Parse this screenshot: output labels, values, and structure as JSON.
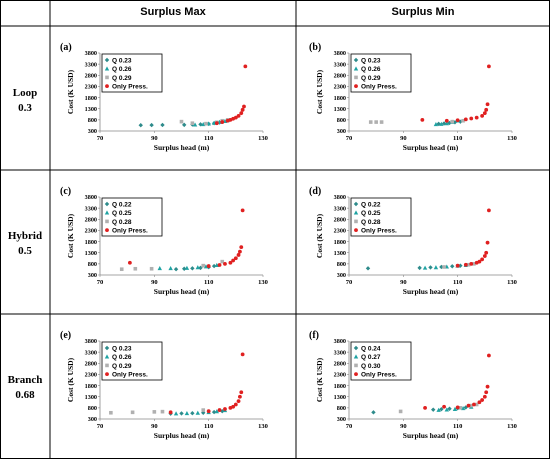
{
  "header": {
    "col1": "Surplus Max",
    "col2": "Surplus Min"
  },
  "rows": [
    {
      "name": "Loop",
      "value": "0.3"
    },
    {
      "name": "Hybrid",
      "value": "0.5"
    },
    {
      "name": "Branch",
      "value": "0.68"
    }
  ],
  "colors": {
    "series1": "#2E8B8B",
    "series2": "#1FA3A3",
    "series3": "#B0B0B0",
    "only_press": "#E02020"
  },
  "chart_data": [
    {
      "panel": "(a)",
      "type": "scatter",
      "xlabel": "Surplus head (m)",
      "ylabel": "Cost (K USD)",
      "xlim": [
        70,
        130
      ],
      "ylim": [
        300,
        3800
      ],
      "xticks": [
        70,
        90,
        110,
        130
      ],
      "yticks": [
        300,
        800,
        1300,
        1800,
        2300,
        2800,
        3300,
        3800
      ],
      "series": [
        {
          "name": "Q 0.23",
          "points": [
            [
              85,
              560
            ],
            [
              89,
              565
            ],
            [
              93,
              570
            ],
            [
              101,
              575
            ],
            [
              104,
              590
            ],
            [
              107,
              600
            ],
            [
              110,
              620
            ],
            [
              112,
              650
            ],
            [
              114,
              680
            ]
          ]
        },
        {
          "name": "Q 0.26",
          "points": [
            [
              105,
              580
            ],
            [
              108,
              600
            ],
            [
              110,
              625
            ],
            [
              112,
              660
            ],
            [
              114,
              700
            ],
            [
              116,
              740
            ],
            [
              117,
              780
            ]
          ]
        },
        {
          "name": "Q 0.29",
          "points": [
            [
              100,
              720
            ],
            [
              104,
              650
            ],
            [
              109,
              630
            ],
            [
              113,
              690
            ],
            [
              115,
              760
            ],
            [
              117,
              800
            ]
          ]
        },
        {
          "name": "Only Press.",
          "points": [
            [
              113,
              650
            ],
            [
              115,
              700
            ],
            [
              117,
              760
            ],
            [
              118,
              800
            ],
            [
              119,
              850
            ],
            [
              120,
              900
            ],
            [
              121,
              980
            ],
            [
              122,
              1100
            ],
            [
              122.5,
              1250
            ],
            [
              123,
              1400
            ],
            [
              123.5,
              3200
            ]
          ]
        }
      ]
    },
    {
      "panel": "(b)",
      "type": "scatter",
      "xlabel": "Surplus head (m)",
      "ylabel": "Cost (K USD)",
      "xlim": [
        70,
        130
      ],
      "ylim": [
        300,
        3800
      ],
      "xticks": [
        70,
        90,
        110,
        130
      ],
      "yticks": [
        300,
        800,
        1300,
        1800,
        2300,
        2800,
        3300,
        3800
      ],
      "series": [
        {
          "name": "Q 0.23",
          "points": [
            [
              103,
              620
            ],
            [
              105,
              640
            ],
            [
              107,
              660
            ],
            [
              109,
              690
            ],
            [
              111,
              720
            ]
          ]
        },
        {
          "name": "Q 0.26",
          "points": [
            [
              102,
              600
            ],
            [
              104,
              610
            ],
            [
              106,
              640
            ],
            [
              108,
              700
            ],
            [
              110,
              760
            ]
          ]
        },
        {
          "name": "Q 0.29",
          "points": [
            [
              78,
              700
            ],
            [
              80,
              700
            ],
            [
              82,
              700
            ],
            [
              108,
              720
            ],
            [
              112,
              760
            ]
          ]
        },
        {
          "name": "Only Press.",
          "points": [
            [
              97,
              800
            ],
            [
              106,
              760
            ],
            [
              110,
              780
            ],
            [
              113,
              820
            ],
            [
              115,
              860
            ],
            [
              117,
              900
            ],
            [
              119,
              980
            ],
            [
              120,
              1100
            ],
            [
              120.5,
              1250
            ],
            [
              121,
              1500
            ],
            [
              121.5,
              3200
            ]
          ]
        }
      ]
    },
    {
      "panel": "(c)",
      "type": "scatter",
      "xlabel": "Surplus head (m)",
      "ylabel": "Cost (K USD)",
      "xlim": [
        70,
        130
      ],
      "ylim": [
        300,
        3800
      ],
      "xticks": [
        70,
        90,
        110,
        130
      ],
      "yticks": [
        300,
        800,
        1300,
        1800,
        2300,
        2800,
        3300,
        3800
      ],
      "series": [
        {
          "name": "Q 0.22",
          "points": [
            [
              98,
              560
            ],
            [
              101,
              580
            ],
            [
              104,
              600
            ],
            [
              107,
              620
            ],
            [
              110,
              650
            ],
            [
              112,
              700
            ]
          ]
        },
        {
          "name": "Q 0.25",
          "points": [
            [
              92,
              600
            ],
            [
              96,
              600
            ],
            [
              102,
              610
            ],
            [
              106,
              640
            ],
            [
              109,
              680
            ],
            [
              113,
              740
            ]
          ]
        },
        {
          "name": "Q 0.28",
          "points": [
            [
              78,
              560
            ],
            [
              83,
              580
            ],
            [
              89,
              580
            ],
            [
              108,
              720
            ],
            [
              115,
              900
            ]
          ]
        },
        {
          "name": "Only Press.",
          "points": [
            [
              81,
              850
            ],
            [
              110,
              700
            ],
            [
              114,
              750
            ],
            [
              116,
              800
            ],
            [
              118,
              850
            ],
            [
              119,
              950
            ],
            [
              120,
              1050
            ],
            [
              121,
              1200
            ],
            [
              121.5,
              1350
            ],
            [
              122,
              1550
            ],
            [
              122.5,
              3200
            ]
          ]
        }
      ]
    },
    {
      "panel": "(d)",
      "type": "scatter",
      "xlabel": "Surplus head (m)",
      "ylabel": "Cost (K USD)",
      "xlim": [
        70,
        130
      ],
      "ylim": [
        300,
        3800
      ],
      "xticks": [
        70,
        90,
        110,
        130
      ],
      "yticks": [
        300,
        800,
        1300,
        1800,
        2300,
        2800,
        3300,
        3800
      ],
      "series": [
        {
          "name": "Q 0.22",
          "points": [
            [
              77,
              600
            ],
            [
              96,
              620
            ],
            [
              100,
              640
            ],
            [
              104,
              660
            ],
            [
              108,
              690
            ],
            [
              111,
              720
            ]
          ]
        },
        {
          "name": "Q 0.25",
          "points": [
            [
              98,
              620
            ],
            [
              102,
              640
            ],
            [
              106,
              670
            ],
            [
              110,
              700
            ],
            [
              113,
              740
            ]
          ]
        },
        {
          "name": "Q 0.28",
          "points": [
            [
              105,
              660
            ],
            [
              110,
              700
            ],
            [
              114,
              760
            ],
            [
              116,
              800
            ]
          ]
        },
        {
          "name": "Only Press.",
          "points": [
            [
              110,
              720
            ],
            [
              113,
              760
            ],
            [
              115,
              800
            ],
            [
              117,
              850
            ],
            [
              118,
              900
            ],
            [
              119,
              1000
            ],
            [
              120,
              1150
            ],
            [
              120.5,
              1300
            ],
            [
              121,
              1750
            ],
            [
              121.5,
              3200
            ]
          ]
        }
      ]
    },
    {
      "panel": "(e)",
      "type": "scatter",
      "xlabel": "Surplus head (m)",
      "ylabel": "Cost (K USD)",
      "xlim": [
        70,
        130
      ],
      "ylim": [
        300,
        3800
      ],
      "xticks": [
        70,
        90,
        110,
        130
      ],
      "yticks": [
        300,
        800,
        1300,
        1800,
        2300,
        2800,
        3300,
        3800
      ],
      "series": [
        {
          "name": "Q 0.23",
          "points": [
            [
              96,
              540
            ],
            [
              100,
              550
            ],
            [
              104,
              560
            ],
            [
              108,
              580
            ],
            [
              112,
              610
            ],
            [
              115,
              650
            ]
          ]
        },
        {
          "name": "Q 0.26",
          "points": [
            [
              98,
              545
            ],
            [
              102,
              555
            ],
            [
              106,
              570
            ],
            [
              110,
              600
            ],
            [
              113,
              640
            ],
            [
              116,
              690
            ]
          ]
        },
        {
          "name": "Q 0.29",
          "points": [
            [
              74,
              580
            ],
            [
              82,
              600
            ],
            [
              90,
              620
            ],
            [
              93,
              630
            ],
            [
              108,
              700
            ]
          ]
        },
        {
          "name": "Only Press.",
          "points": [
            [
              96,
              600
            ],
            [
              110,
              650
            ],
            [
              114,
              700
            ],
            [
              116,
              750
            ],
            [
              118,
              800
            ],
            [
              119,
              850
            ],
            [
              120,
              950
            ],
            [
              121,
              1100
            ],
            [
              121.5,
              1300
            ],
            [
              122,
              1500
            ],
            [
              122.5,
              3200
            ]
          ]
        }
      ]
    },
    {
      "panel": "(f)",
      "type": "scatter",
      "xlabel": "Surplus head (m)",
      "ylabel": "Cost (K USD)",
      "xlim": [
        70,
        130
      ],
      "ylim": [
        300,
        3800
      ],
      "xticks": [
        70,
        90,
        110,
        130
      ],
      "yticks": [
        300,
        800,
        1300,
        1800,
        2300,
        2800,
        3300,
        3800
      ],
      "series": [
        {
          "name": "Q 0.24",
          "points": [
            [
              79,
              600
            ],
            [
              101,
              720
            ],
            [
              104,
              740
            ],
            [
              107,
              760
            ],
            [
              110,
              780
            ],
            [
              113,
              820
            ]
          ]
        },
        {
          "name": "Q 0.27",
          "points": [
            [
              103,
              700
            ],
            [
              106,
              720
            ],
            [
              109,
              740
            ],
            [
              112,
              780
            ],
            [
              115,
              840
            ]
          ]
        },
        {
          "name": "Q 0.30",
          "points": [
            [
              89,
              640
            ],
            [
              111,
              800
            ],
            [
              115,
              900
            ],
            [
              117,
              950
            ]
          ]
        },
        {
          "name": "Only Press.",
          "points": [
            [
              98,
              800
            ],
            [
              105,
              850
            ],
            [
              110,
              820
            ],
            [
              114,
              900
            ],
            [
              116,
              950
            ],
            [
              118,
              1050
            ],
            [
              119,
              1150
            ],
            [
              120,
              1300
            ],
            [
              120.5,
              1500
            ],
            [
              121,
              1750
            ],
            [
              121.5,
              3150
            ]
          ]
        }
      ]
    }
  ]
}
